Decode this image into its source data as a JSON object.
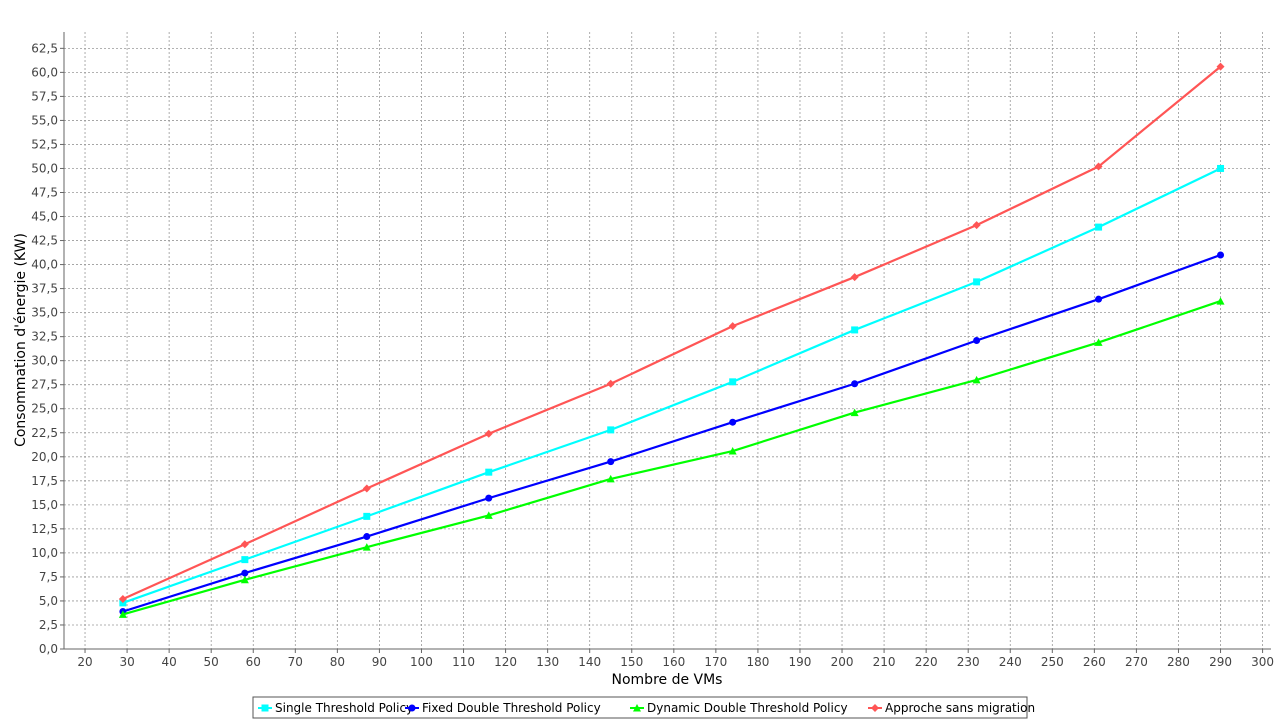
{
  "chart_data": {
    "type": "line",
    "xlabel": "Nombre de VMs",
    "ylabel": "Consommation d'énergie (KW)",
    "xlim": [
      15,
      302
    ],
    "ylim": [
      0,
      64.2
    ],
    "x_ticks": [
      20,
      30,
      40,
      50,
      60,
      70,
      80,
      90,
      100,
      110,
      120,
      130,
      140,
      150,
      160,
      170,
      180,
      190,
      200,
      210,
      220,
      230,
      240,
      250,
      260,
      270,
      280,
      290,
      300
    ],
    "y_ticks": [
      "0,0",
      "2,5",
      "5,0",
      "7,5",
      "10,0",
      "12,5",
      "15,0",
      "17,5",
      "20,0",
      "22,5",
      "25,0",
      "27,5",
      "30,0",
      "32,5",
      "35,0",
      "37,5",
      "40,0",
      "42,5",
      "45,0",
      "47,5",
      "50,0",
      "52,5",
      "55,0",
      "57,5",
      "60,0",
      "62,5"
    ],
    "grid": true,
    "legend_position": "bottom",
    "x": [
      29,
      58,
      87,
      116,
      145,
      174,
      203,
      232,
      261,
      290
    ],
    "series": [
      {
        "name": "Single Threshold Policy",
        "color": "#00ffff",
        "marker": "square",
        "values": [
          4.8,
          9.3,
          13.8,
          18.4,
          22.8,
          27.8,
          33.2,
          38.2,
          43.9,
          50.0
        ]
      },
      {
        "name": "Fixed Double Threshold Policy",
        "color": "#0000ff",
        "marker": "circle",
        "values": [
          3.9,
          7.9,
          11.7,
          15.7,
          19.5,
          23.6,
          27.6,
          32.1,
          36.4,
          41.0
        ]
      },
      {
        "name": "Dynamic Double Threshold Policy",
        "color": "#00ff00",
        "marker": "triangle",
        "values": [
          3.6,
          7.2,
          10.6,
          13.9,
          17.7,
          20.6,
          24.6,
          28.0,
          31.9,
          36.2
        ]
      },
      {
        "name": "Approche sans migration",
        "color": "#ff5555",
        "marker": "diamond",
        "values": [
          5.2,
          10.9,
          16.7,
          22.4,
          27.6,
          33.6,
          38.7,
          44.1,
          50.2,
          60.6
        ]
      }
    ]
  }
}
